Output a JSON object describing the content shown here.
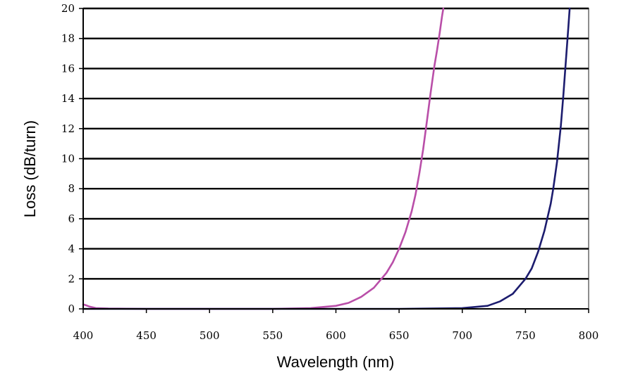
{
  "chart_data": {
    "type": "line",
    "title": "",
    "xlabel": "Wavelength (nm)",
    "ylabel": "Loss (dB/turn)",
    "xlim": [
      400,
      800
    ],
    "ylim": [
      0,
      20
    ],
    "x_ticks": [
      400,
      450,
      500,
      550,
      600,
      650,
      700,
      750,
      800
    ],
    "y_ticks": [
      0,
      2,
      4,
      6,
      8,
      10,
      12,
      14,
      16,
      18,
      20
    ],
    "grid": "horizontal",
    "legend": "none",
    "series": [
      {
        "name": "magenta curve",
        "color": "#b94ea8",
        "x": [
          400,
          402,
          405,
          410,
          420,
          450,
          500,
          550,
          580,
          600,
          610,
          620,
          630,
          640,
          645,
          650,
          655,
          660,
          663,
          666,
          669,
          672,
          675,
          678,
          680,
          682,
          684,
          685
        ],
        "y": [
          0.3,
          0.25,
          0.15,
          0.05,
          0.02,
          0.0,
          0.0,
          0.0,
          0.05,
          0.2,
          0.4,
          0.8,
          1.4,
          2.4,
          3.1,
          4.0,
          5.1,
          6.5,
          7.6,
          9.0,
          10.6,
          12.5,
          14.4,
          16.2,
          17.2,
          18.3,
          19.5,
          20.0
        ]
      },
      {
        "name": "navy curve",
        "color": "#1c1c6e",
        "x": [
          400,
          600,
          650,
          700,
          720,
          730,
          740,
          750,
          755,
          760,
          765,
          770,
          772,
          775,
          778,
          780,
          782,
          784,
          785
        ],
        "y": [
          0.0,
          0.0,
          0.0,
          0.05,
          0.2,
          0.5,
          1.0,
          2.0,
          2.7,
          3.8,
          5.2,
          7.0,
          8.0,
          9.8,
          12.2,
          14.2,
          16.5,
          18.8,
          20.0
        ]
      }
    ]
  }
}
